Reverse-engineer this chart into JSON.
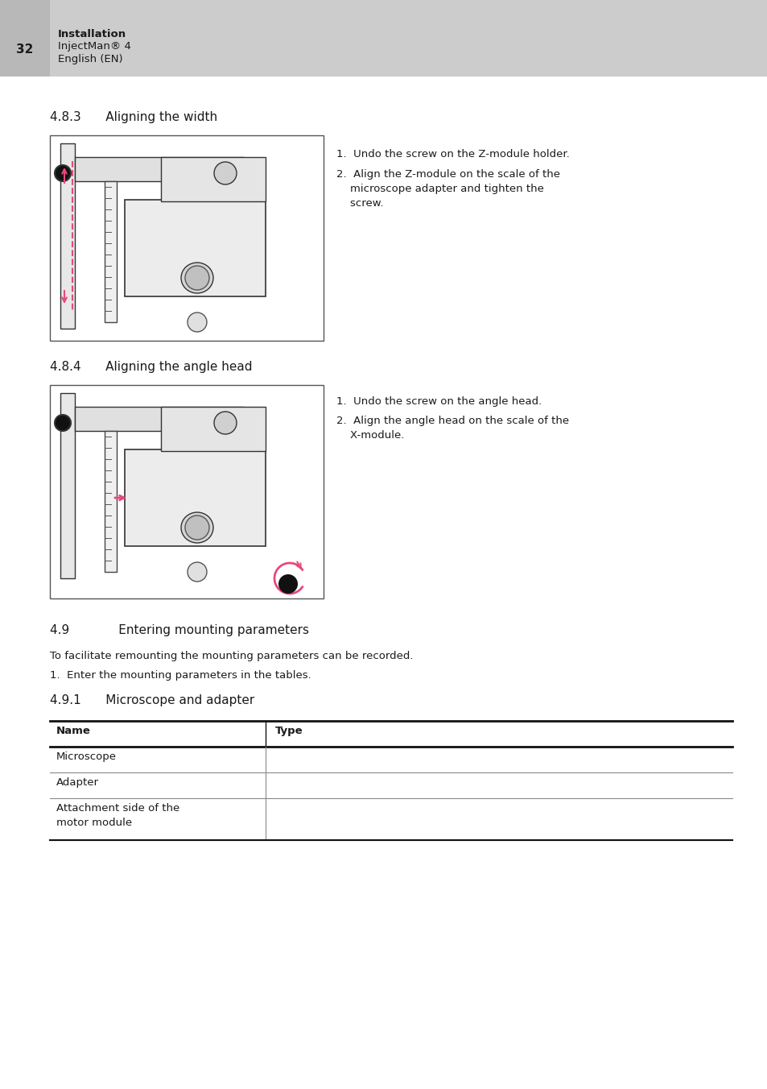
{
  "page_bg": "#ffffff",
  "header_bg": "#cccccc",
  "header_num": "32",
  "header_bold": "Installation",
  "header_line2": "InjectMan® 4",
  "header_line3": "English (EN)",
  "sec483_title": "4.8.3  Aligning the width",
  "sec483_step1": "1.  Undo the screw on the Z-module holder.",
  "sec483_step2a": "2.  Align the Z-module on the scale of the",
  "sec483_step2b": "    microscope adapter and tighten the",
  "sec483_step2c": "    screw.",
  "sec484_title": "4.8.4  Aligning the angle head",
  "sec484_step1": "1.  Undo the screw on the angle head.",
  "sec484_step2a": "2.  Align the angle head on the scale of the",
  "sec484_step2b": "    X-module.",
  "sec49_title": "4.9    Entering mounting parameters",
  "sec49_intro": "To facilitate remounting the mounting parameters can be recorded.",
  "sec49_step": "1.  Enter the mounting parameters in the tables.",
  "sec491_title": "4.9.1  Microscope and adapter",
  "table_headers": [
    "Name",
    "Type"
  ],
  "table_rows": [
    [
      "Microscope",
      ""
    ],
    [
      "Adapter",
      ""
    ],
    [
      "Attachment side of the\nmotor module",
      ""
    ]
  ],
  "accent_color": "#e8497a",
  "text_color": "#1a1a1a"
}
